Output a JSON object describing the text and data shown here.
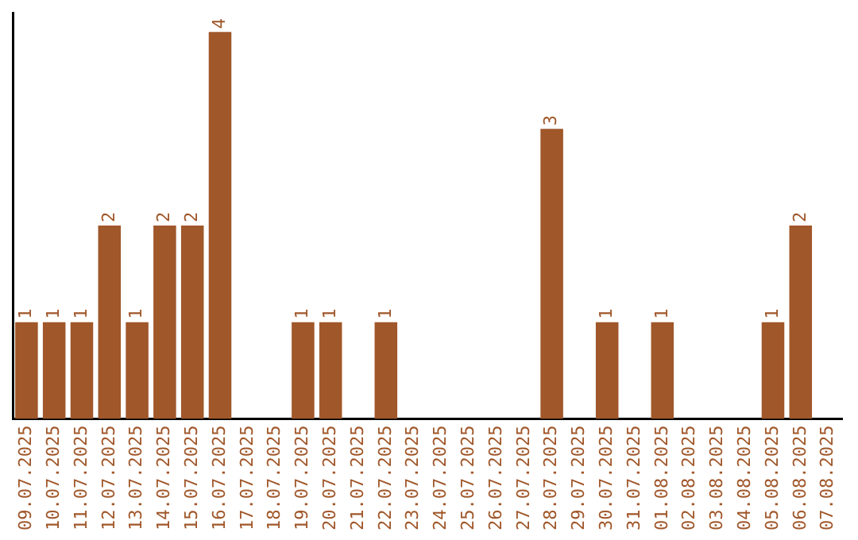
{
  "chart_data": {
    "type": "bar",
    "categories": [
      "09.07.2025",
      "10.07.2025",
      "11.07.2025",
      "12.07.2025",
      "13.07.2025",
      "14.07.2025",
      "15.07.2025",
      "16.07.2025",
      "17.07.2025",
      "18.07.2025",
      "19.07.2025",
      "20.07.2025",
      "21.07.2025",
      "22.07.2025",
      "23.07.2025",
      "24.07.2025",
      "25.07.2025",
      "26.07.2025",
      "27.07.2025",
      "28.07.2025",
      "29.07.2025",
      "30.07.2025",
      "31.07.2025",
      "01.08.2025",
      "02.08.2025",
      "03.08.2025",
      "04.08.2025",
      "05.08.2025",
      "06.08.2025",
      "07.08.2025"
    ],
    "values": [
      1,
      1,
      1,
      2,
      1,
      2,
      2,
      4,
      0,
      0,
      1,
      1,
      0,
      1,
      0,
      0,
      0,
      0,
      0,
      3,
      0,
      1,
      0,
      1,
      0,
      0,
      0,
      1,
      2,
      0
    ],
    "value_labels": [
      "1",
      "1",
      "1",
      "2",
      "1",
      "2",
      "2",
      "4",
      null,
      null,
      "1",
      "1",
      null,
      "1",
      null,
      null,
      null,
      null,
      null,
      "3",
      null,
      "1",
      null,
      "1",
      null,
      null,
      null,
      "1",
      "2",
      null
    ],
    "color": "#a0572a",
    "ylim": [
      0,
      4.2
    ],
    "tick_labels": "x",
    "grid": false,
    "legend": false
  }
}
